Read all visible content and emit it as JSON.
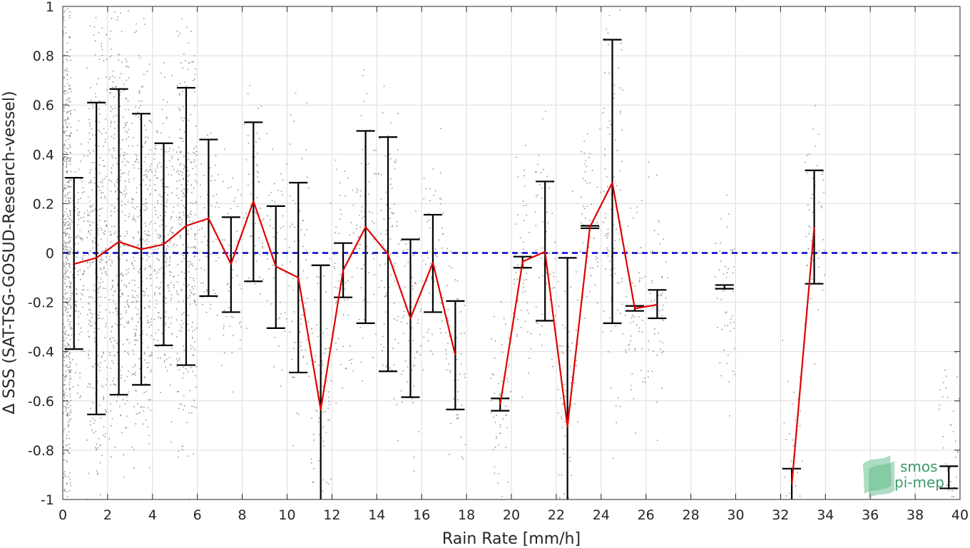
{
  "chart_data": {
    "type": "line",
    "xlabel": "Rain Rate [mm/h]",
    "ylabel": "Δ SSS (SAT-TSG-GOSUD-Research-vessel)",
    "xlim": [
      0,
      40
    ],
    "ylim": [
      -1,
      1
    ],
    "xticks": [
      0,
      2,
      4,
      6,
      8,
      10,
      12,
      14,
      16,
      18,
      20,
      22,
      24,
      26,
      28,
      30,
      32,
      34,
      36,
      38,
      40
    ],
    "yticks": [
      -1,
      -0.8,
      -0.6,
      -0.4,
      -0.2,
      0,
      0.2,
      0.4,
      0.6,
      0.8,
      1
    ],
    "xtick_labels": [
      "0",
      "2",
      "4",
      "6",
      "8",
      "10",
      "12",
      "14",
      "16",
      "18",
      "20",
      "22",
      "24",
      "26",
      "28",
      "30",
      "32",
      "34",
      "36",
      "38",
      "40"
    ],
    "ytick_labels": [
      "-1",
      "-0.8",
      "-0.6",
      "-0.4",
      "-0.2",
      "0",
      "0.2",
      "0.4",
      "0.6",
      "0.8",
      "1"
    ],
    "grid": true,
    "zero_line": {
      "y": 0,
      "color": "#0000cc",
      "style": "dashed"
    },
    "mean_line_color": "#e00000",
    "errorbar_color": "#000000",
    "scatter_color": "#808080",
    "bins": [
      {
        "x": 0.5,
        "mean": -0.045,
        "upper": 0.305,
        "lower": -0.39
      },
      {
        "x": 1.5,
        "mean": -0.02,
        "upper": 0.61,
        "lower": -0.655
      },
      {
        "x": 2.5,
        "mean": 0.045,
        "upper": 0.665,
        "lower": -0.575
      },
      {
        "x": 3.5,
        "mean": 0.015,
        "upper": 0.565,
        "lower": -0.535
      },
      {
        "x": 4.5,
        "mean": 0.035,
        "upper": 0.445,
        "lower": -0.375
      },
      {
        "x": 5.5,
        "mean": 0.11,
        "upper": 0.67,
        "lower": -0.455
      },
      {
        "x": 6.5,
        "mean": 0.14,
        "upper": 0.46,
        "lower": -0.175
      },
      {
        "x": 7.5,
        "mean": -0.045,
        "upper": 0.145,
        "lower": -0.24
      },
      {
        "x": 8.5,
        "mean": 0.21,
        "upper": 0.53,
        "lower": -0.115
      },
      {
        "x": 9.5,
        "mean": -0.055,
        "upper": 0.19,
        "lower": -0.305
      },
      {
        "x": 10.5,
        "mean": -0.1,
        "upper": 0.285,
        "lower": -0.485
      },
      {
        "x": 11.5,
        "mean": -0.635,
        "upper": -0.05,
        "lower": -1.0
      },
      {
        "x": 12.5,
        "mean": -0.07,
        "upper": 0.04,
        "lower": -0.18
      },
      {
        "x": 13.5,
        "mean": 0.105,
        "upper": 0.495,
        "lower": -0.285
      },
      {
        "x": 14.5,
        "mean": -0.005,
        "upper": 0.47,
        "lower": -0.48
      },
      {
        "x": 15.5,
        "mean": -0.265,
        "upper": 0.055,
        "lower": -0.585
      },
      {
        "x": 16.5,
        "mean": -0.04,
        "upper": 0.155,
        "lower": -0.24
      },
      {
        "x": 17.5,
        "mean": -0.415,
        "upper": -0.195,
        "lower": -0.635
      },
      {
        "x": 19.5,
        "mean": -0.615,
        "upper": -0.59,
        "lower": -0.64
      },
      {
        "x": 20.5,
        "mean": -0.035,
        "upper": -0.015,
        "lower": -0.06
      },
      {
        "x": 21.5,
        "mean": 0.005,
        "upper": 0.29,
        "lower": -0.275
      },
      {
        "x": 22.5,
        "mean": -0.705,
        "upper": -0.02,
        "lower": -1.0
      },
      {
        "x": 23.5,
        "mean": 0.105,
        "upper": 0.11,
        "lower": 0.1
      },
      {
        "x": 24.5,
        "mean": 0.285,
        "upper": 0.865,
        "lower": -0.285
      },
      {
        "x": 25.5,
        "mean": -0.225,
        "upper": -0.215,
        "lower": -0.235
      },
      {
        "x": 26.5,
        "mean": -0.21,
        "upper": -0.15,
        "lower": -0.265
      },
      {
        "x": 29.5,
        "mean": -0.14,
        "upper": -0.13,
        "lower": -0.145
      },
      {
        "x": 32.5,
        "mean": -0.94,
        "upper": -0.875,
        "lower": -1.0
      },
      {
        "x": 33.5,
        "mean": 0.105,
        "upper": 0.335,
        "lower": -0.125
      },
      {
        "x": 39.5,
        "mean": -0.91,
        "upper": -0.865,
        "lower": -0.955
      }
    ],
    "mean_line_segments": [
      [
        0.5,
        1.5,
        2.5,
        3.5,
        4.5,
        5.5,
        6.5,
        7.5,
        8.5,
        9.5,
        10.5,
        11.5,
        12.5,
        13.5,
        14.5,
        15.5,
        16.5,
        17.5
      ],
      [
        19.5,
        20.5,
        21.5,
        22.5,
        23.5,
        24.5,
        25.5,
        26.5
      ],
      [
        32.5,
        33.5
      ]
    ]
  },
  "logo": {
    "line1": "smos",
    "line2": "pi-mep",
    "color": "#3a9a6a"
  }
}
